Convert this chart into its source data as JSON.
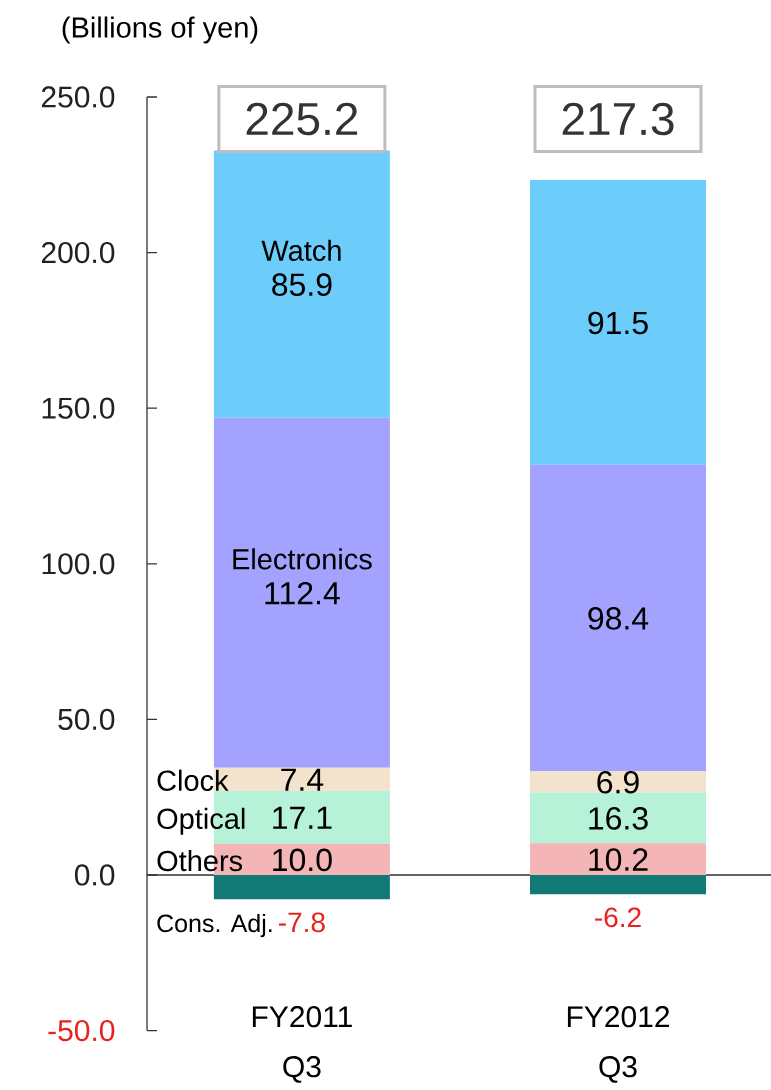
{
  "chart_data": {
    "type": "bar",
    "stacked": true,
    "ylabel": "(Billions of yen)",
    "categories": [
      "FY2011 Q3",
      "FY2012 Q3"
    ],
    "series": [
      {
        "name": "Cons. Adj.",
        "color": "#117a74",
        "values": [
          -7.8,
          -6.2
        ],
        "value_labels": [
          "-7.8",
          "-6.2"
        ]
      },
      {
        "name": "Others",
        "color": "#f3b5b5",
        "values": [
          10.0,
          10.2
        ],
        "value_labels": [
          "10.0",
          "10.2"
        ]
      },
      {
        "name": "Optical",
        "color": "#b5f2d8",
        "values": [
          17.1,
          16.3
        ],
        "value_labels": [
          "17.1",
          "16.3"
        ]
      },
      {
        "name": "Clock",
        "color": "#f3e3cd",
        "values": [
          7.4,
          6.9
        ],
        "value_labels": [
          "7.4",
          "6.9"
        ]
      },
      {
        "name": "Electronics",
        "color": "#a3a3ff",
        "values": [
          112.4,
          98.4
        ],
        "value_labels": [
          "112.4",
          "98.4"
        ]
      },
      {
        "name": "Watch",
        "color": "#6ccdfa",
        "values": [
          85.9,
          91.5
        ],
        "value_labels": [
          "85.9",
          "91.5"
        ]
      }
    ],
    "totals": [
      "225.2",
      "217.3"
    ],
    "ylim": [
      -50,
      250
    ],
    "yticks": [
      {
        "value": -50,
        "label": "-50.0"
      },
      {
        "value": 0,
        "label": "0.0"
      },
      {
        "value": 50,
        "label": "50.0"
      },
      {
        "value": 100,
        "label": "100.0"
      },
      {
        "value": 150,
        "label": "150.0"
      },
      {
        "value": 200,
        "label": "200.0"
      },
      {
        "value": 250,
        "label": "250.0"
      }
    ]
  }
}
